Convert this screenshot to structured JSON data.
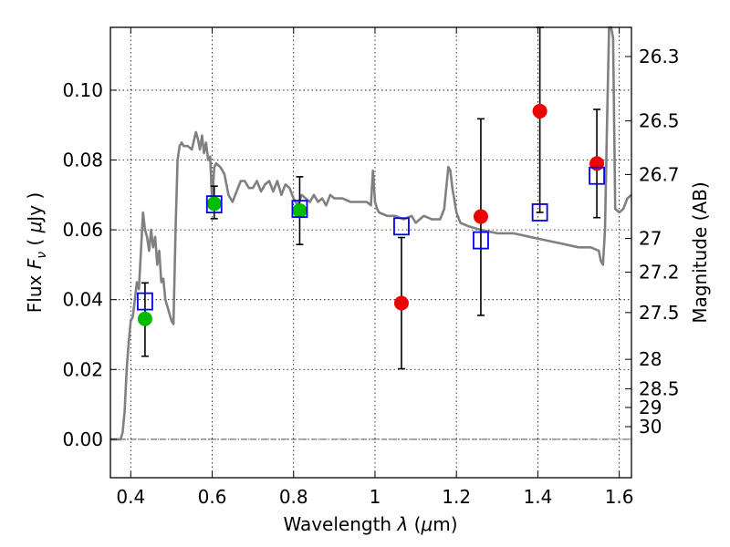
{
  "chart_data": {
    "type": "scatter",
    "xlabel": "Wavelength  λ (μm)",
    "ylabel_left": "Flux  Fν  ( μJy )",
    "ylabel_right": "Magnitude (AB)",
    "xlim": [
      0.35,
      1.63
    ],
    "ylim": [
      -0.011,
      0.118
    ],
    "x_ticks": [
      0.4,
      0.6,
      0.8,
      1.0,
      1.2,
      1.4,
      1.6
    ],
    "x_tick_labels": [
      "0.4",
      "0.6",
      "0.8",
      "1",
      "1.2",
      "1.4",
      "1.6"
    ],
    "y_ticks": [
      0.0,
      0.02,
      0.04,
      0.06,
      0.08,
      0.1
    ],
    "y_tick_labels": [
      "0.00",
      "0.02",
      "0.04",
      "0.06",
      "0.08",
      "0.10"
    ],
    "mag_ticks": [
      26.3,
      26.5,
      26.7,
      27,
      27.2,
      27.5,
      28,
      28.5,
      29,
      30
    ],
    "mag_tick_labels": [
      "26.3",
      "26.5",
      "26.7",
      "27",
      "27.2",
      "27.5",
      "28",
      "28.5",
      "29",
      "30"
    ],
    "grid": true,
    "colors": {
      "model": "#808080",
      "detections": "#00bb00",
      "nondetections": "#ee0000",
      "model_bandflux": "#0000ee",
      "errorbar": "#000000",
      "zero_line": "#555555"
    },
    "series": [
      {
        "type": "line",
        "x": [
          0.35,
          0.375,
          0.38,
          0.385,
          0.39,
          0.395,
          0.4,
          0.405,
          0.41,
          0.415,
          0.42,
          0.425,
          0.43,
          0.435,
          0.44,
          0.445,
          0.45,
          0.455,
          0.46,
          0.465,
          0.47,
          0.475,
          0.48,
          0.485,
          0.49,
          0.495,
          0.5,
          0.505,
          0.51,
          0.515,
          0.52,
          0.525,
          0.53,
          0.54,
          0.55,
          0.56,
          0.565,
          0.57,
          0.575,
          0.58,
          0.585,
          0.59,
          0.595,
          0.6,
          0.605,
          0.61,
          0.62,
          0.63,
          0.64,
          0.65,
          0.66,
          0.67,
          0.68,
          0.69,
          0.7,
          0.71,
          0.72,
          0.73,
          0.74,
          0.75,
          0.76,
          0.77,
          0.78,
          0.79,
          0.8,
          0.81,
          0.82,
          0.83,
          0.84,
          0.85,
          0.86,
          0.87,
          0.88,
          0.89,
          0.9,
          0.92,
          0.94,
          0.96,
          0.98,
          0.99,
          0.995,
          1.0,
          1.005,
          1.01,
          1.03,
          1.05,
          1.07,
          1.09,
          1.1,
          1.12,
          1.14,
          1.16,
          1.17,
          1.18,
          1.185,
          1.19,
          1.2,
          1.21,
          1.23,
          1.26,
          1.3,
          1.34,
          1.38,
          1.42,
          1.46,
          1.5,
          1.53,
          1.55,
          1.555,
          1.56,
          1.565,
          1.57,
          1.575,
          1.58,
          1.585,
          1.59,
          1.6,
          1.61,
          1.62,
          1.63
        ],
        "y": [
          0.0,
          0.0,
          0.002,
          0.008,
          0.02,
          0.028,
          0.034,
          0.035,
          0.04,
          0.045,
          0.043,
          0.054,
          0.065,
          0.06,
          0.058,
          0.054,
          0.06,
          0.055,
          0.058,
          0.05,
          0.054,
          0.045,
          0.046,
          0.04,
          0.038,
          0.036,
          0.034,
          0.033,
          0.06,
          0.08,
          0.084,
          0.085,
          0.084,
          0.084,
          0.083,
          0.088,
          0.086,
          0.083,
          0.087,
          0.082,
          0.085,
          0.08,
          0.081,
          0.068,
          0.078,
          0.079,
          0.078,
          0.076,
          0.07,
          0.068,
          0.071,
          0.074,
          0.074,
          0.072,
          0.072,
          0.074,
          0.071,
          0.073,
          0.074,
          0.071,
          0.074,
          0.07,
          0.073,
          0.072,
          0.069,
          0.067,
          0.07,
          0.069,
          0.068,
          0.07,
          0.068,
          0.069,
          0.067,
          0.07,
          0.069,
          0.069,
          0.068,
          0.068,
          0.068,
          0.067,
          0.077,
          0.068,
          0.066,
          0.065,
          0.064,
          0.064,
          0.063,
          0.064,
          0.062,
          0.064,
          0.063,
          0.063,
          0.066,
          0.078,
          0.077,
          0.072,
          0.065,
          0.062,
          0.061,
          0.06,
          0.059,
          0.059,
          0.058,
          0.057,
          0.056,
          0.055,
          0.055,
          0.054,
          0.051,
          0.05,
          0.06,
          0.09,
          0.12,
          0.118,
          0.115,
          0.066,
          0.065,
          0.066,
          0.069,
          0.07
        ]
      },
      {
        "type": "scatter",
        "marker": "circle",
        "color": "#00bb00",
        "x": [
          0.435,
          0.605,
          0.815
        ],
        "y": [
          0.0345,
          0.0675,
          0.0655
        ]
      },
      {
        "type": "scatter",
        "marker": "circle",
        "color": "#ee0000",
        "x": [
          1.065,
          1.26,
          1.405,
          1.545
        ],
        "y": [
          0.039,
          0.0638,
          0.094,
          0.079
        ]
      },
      {
        "type": "scatter",
        "marker": "square-open",
        "color": "#0000ee",
        "x": [
          0.435,
          0.605,
          0.815,
          1.065,
          1.26,
          1.405,
          1.545
        ],
        "y": [
          0.0395,
          0.0673,
          0.066,
          0.061,
          0.057,
          0.065,
          0.0755
        ]
      },
      {
        "type": "errorbar",
        "x": [
          0.435,
          0.605,
          0.815,
          1.065,
          1.26,
          1.405,
          1.545
        ],
        "y_low": [
          0.0238,
          0.0632,
          0.0558,
          0.0202,
          0.0355,
          0.065,
          0.0635
        ],
        "y_high": [
          0.0448,
          0.0725,
          0.0752,
          0.0578,
          0.0918,
          0.118,
          0.0945
        ]
      }
    ]
  }
}
